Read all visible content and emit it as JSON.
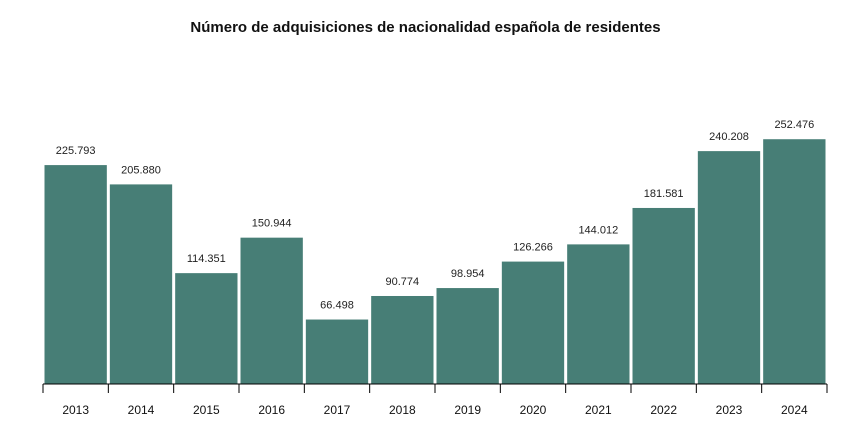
{
  "chart_data": {
    "type": "bar",
    "title": "Número de adquisiciones de nacionalidad española de residentes",
    "categories": [
      "2013",
      "2014",
      "2015",
      "2016",
      "2017",
      "2018",
      "2019",
      "2020",
      "2021",
      "2022",
      "2023",
      "2024"
    ],
    "values": [
      225793,
      205880,
      114351,
      150944,
      66498,
      90774,
      98954,
      126266,
      144012,
      181581,
      240208,
      252476
    ],
    "value_labels": [
      "225.793",
      "205.880",
      "114.351",
      "150.944",
      "66.498",
      "90.774",
      "98.954",
      "126.266",
      "144.012",
      "181.581",
      "240.208",
      "252.476"
    ],
    "xlabel": "",
    "ylabel": "",
    "ylim": [
      0,
      280000
    ],
    "grid": false,
    "bar_color": "#477e76"
  }
}
